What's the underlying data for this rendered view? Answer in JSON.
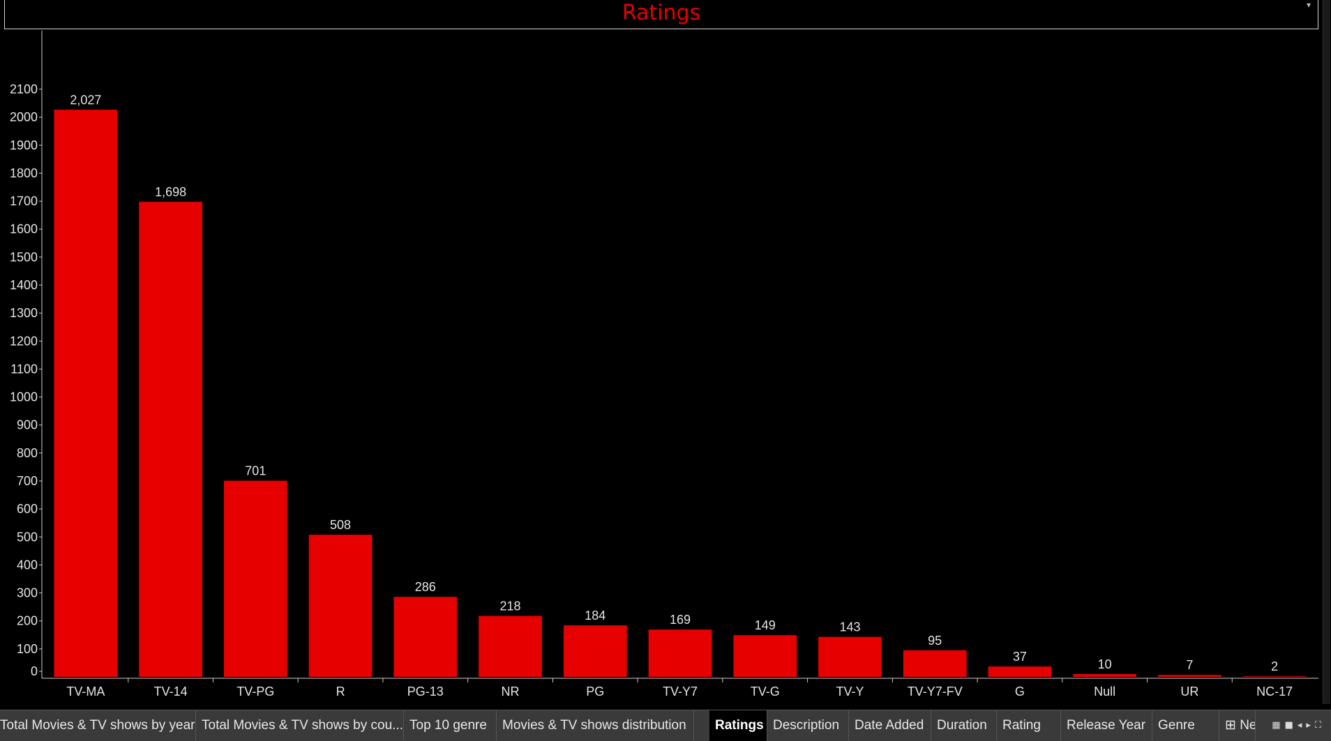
{
  "title": "Ratings",
  "colors": {
    "bar": "#e60000",
    "background": "#000000",
    "title": "#e60000",
    "text": "#e6e6e6"
  },
  "chart_data": {
    "type": "bar",
    "title": "Ratings",
    "xlabel": "",
    "ylabel": "",
    "categories": [
      "TV-MA",
      "TV-14",
      "TV-PG",
      "R",
      "PG-13",
      "NR",
      "PG",
      "TV-Y7",
      "TV-G",
      "TV-Y",
      "TV-Y7-FV",
      "G",
      "Null",
      "UR",
      "NC-17"
    ],
    "values": [
      2027,
      1698,
      701,
      508,
      286,
      218,
      184,
      169,
      149,
      143,
      95,
      37,
      10,
      7,
      2
    ],
    "value_labels": [
      "2,027",
      "1,698",
      "701",
      "508",
      "286",
      "218",
      "184",
      "169",
      "149",
      "143",
      "95",
      "37",
      "10",
      "7",
      "2"
    ],
    "yticks": [
      0,
      100,
      200,
      300,
      400,
      500,
      600,
      700,
      800,
      900,
      1000,
      1100,
      1200,
      1300,
      1400,
      1500,
      1600,
      1700,
      1800,
      1900,
      2000,
      2100
    ],
    "ylim": [
      0,
      2200
    ],
    "grid": false
  },
  "tabs": [
    {
      "label": "Total Movies & TV shows by years",
      "active": false
    },
    {
      "label": "Total Movies & TV shows by cou...",
      "active": false
    },
    {
      "label": "Top 10 genre",
      "active": false
    },
    {
      "label": "Movies & TV shows distribution",
      "active": false
    },
    {
      "label": "Ratings",
      "active": true
    },
    {
      "label": "Description",
      "active": false
    },
    {
      "label": "Date Added",
      "active": false
    },
    {
      "label": "Duration",
      "active": false
    },
    {
      "label": "Rating",
      "active": false
    },
    {
      "label": "Release Year",
      "active": false
    },
    {
      "label": "Genre",
      "active": false
    },
    {
      "label": "Net",
      "active": false
    }
  ]
}
